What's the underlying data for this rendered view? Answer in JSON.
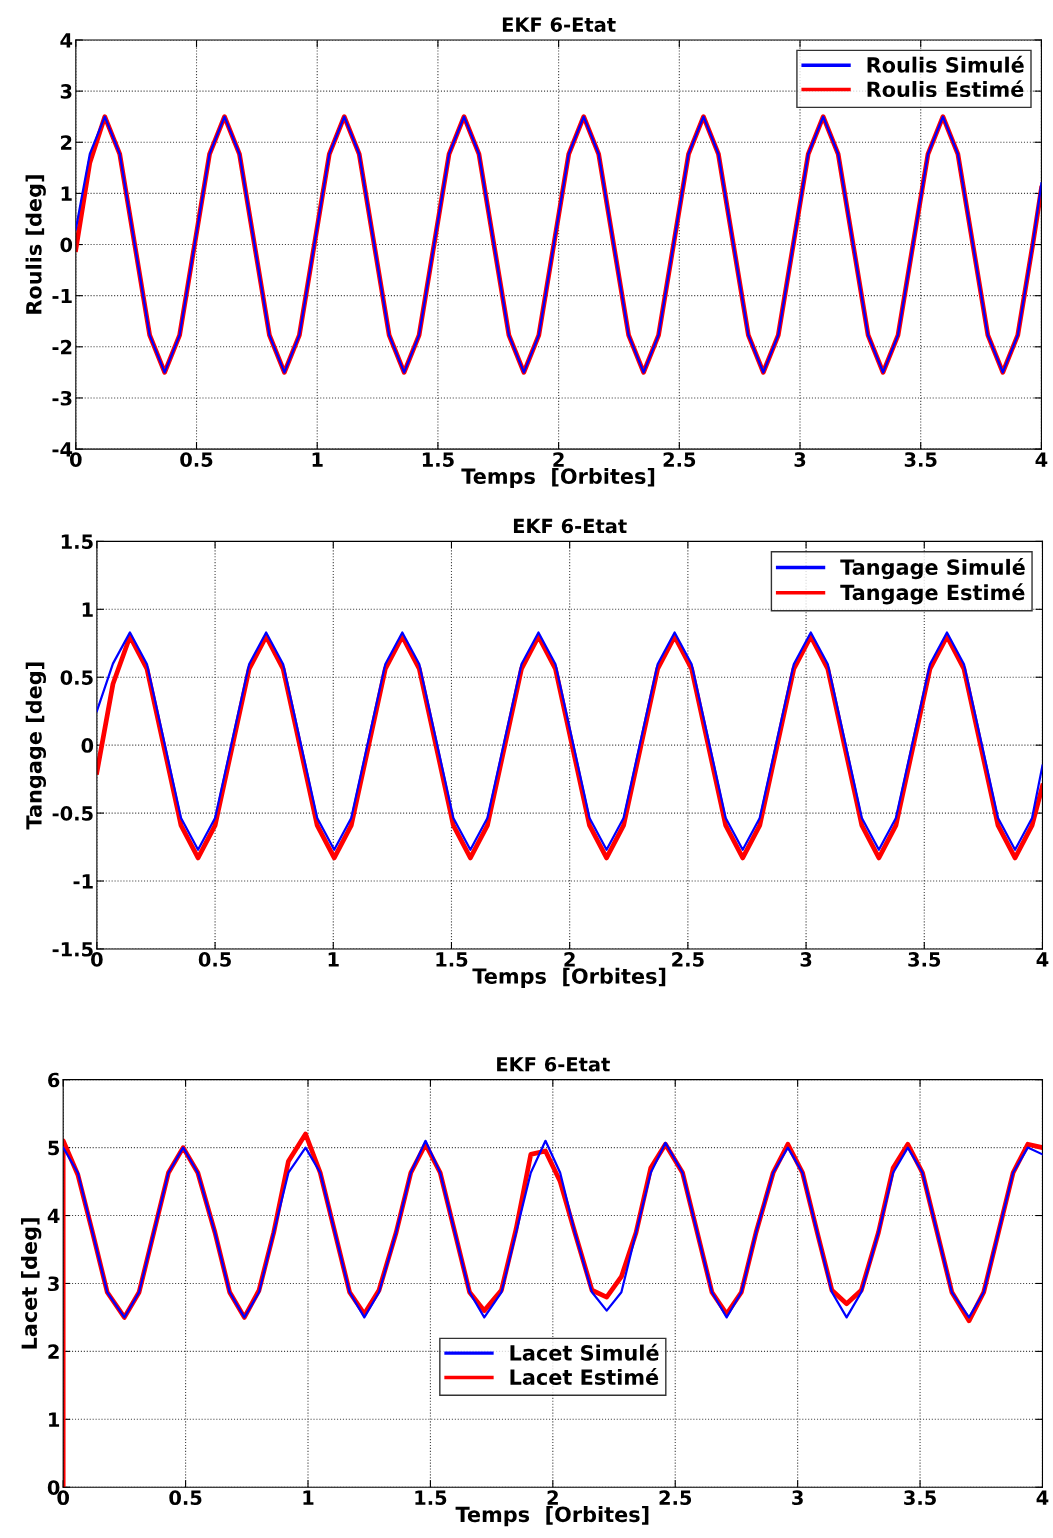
{
  "chart_data": [
    {
      "type": "line",
      "title": "EKF 6-Etat",
      "xlabel": "Temps  [Orbites]",
      "ylabel": "Roulis [deg]",
      "xlim": [
        0,
        4
      ],
      "ylim": [
        -4,
        4
      ],
      "xticks": [
        0,
        0.5,
        1,
        1.5,
        2,
        2.5,
        3,
        3.5,
        4
      ],
      "yticks": [
        -4,
        -3,
        -2,
        -1,
        0,
        1,
        2,
        3,
        4
      ],
      "grid": true,
      "legend": "top right",
      "line_style": "solid",
      "marker": "none",
      "x": [
        0,
        0.058,
        0.12,
        0.182,
        0.244,
        0.306,
        0.368,
        0.43,
        0.492,
        0.554,
        0.616,
        0.678,
        0.74,
        0.802,
        0.864,
        0.926,
        0.988,
        1.05,
        1.112,
        1.174,
        1.236,
        1.298,
        1.36,
        1.422,
        1.484,
        1.546,
        1.608,
        1.67,
        1.732,
        1.794,
        1.856,
        1.918,
        1.98,
        2.042,
        2.104,
        2.166,
        2.228,
        2.29,
        2.352,
        2.414,
        2.476,
        2.538,
        2.6,
        2.662,
        2.724,
        2.786,
        2.848,
        2.91,
        2.972,
        3.034,
        3.096,
        3.158,
        3.22,
        3.282,
        3.344,
        3.406,
        3.468,
        3.53,
        3.592,
        3.654,
        3.716,
        3.778,
        3.84,
        3.902,
        3.964,
        4
      ],
      "series": [
        {
          "name": "Roulis Simulé",
          "color": "#0000ff",
          "values": [
            0.3,
            1.77,
            2.5,
            1.77,
            0,
            -1.77,
            -2.5,
            -1.77,
            0,
            1.77,
            2.5,
            1.77,
            0,
            -1.77,
            -2.5,
            -1.77,
            0,
            1.77,
            2.5,
            1.77,
            0,
            -1.77,
            -2.5,
            -1.77,
            0,
            1.77,
            2.5,
            1.77,
            0,
            -1.77,
            -2.5,
            -1.77,
            0,
            1.77,
            2.5,
            1.77,
            0,
            -1.77,
            -2.5,
            -1.77,
            0,
            1.77,
            2.5,
            1.77,
            0,
            -1.77,
            -2.5,
            -1.77,
            0,
            1.77,
            2.5,
            1.77,
            0,
            -1.77,
            -2.5,
            -1.77,
            0,
            1.77,
            2.5,
            1.77,
            0,
            -1.77,
            -2.5,
            -1.77,
            0,
            1.2
          ]
        },
        {
          "name": "Roulis Estimé",
          "color": "#ff0000",
          "values": [
            -0.1,
            1.6,
            2.5,
            1.77,
            0,
            -1.77,
            -2.5,
            -1.77,
            0,
            1.77,
            2.5,
            1.77,
            0,
            -1.77,
            -2.5,
            -1.77,
            0,
            1.77,
            2.5,
            1.77,
            0,
            -1.77,
            -2.5,
            -1.77,
            0,
            1.77,
            2.5,
            1.77,
            0,
            -1.77,
            -2.5,
            -1.77,
            0,
            1.77,
            2.5,
            1.77,
            0,
            -1.77,
            -2.5,
            -1.77,
            0,
            1.77,
            2.5,
            1.77,
            0,
            -1.77,
            -2.5,
            -1.77,
            0,
            1.77,
            2.5,
            1.77,
            0,
            -1.77,
            -2.5,
            -1.77,
            0,
            1.77,
            2.5,
            1.77,
            0,
            -1.77,
            -2.5,
            -1.77,
            0,
            1.1
          ]
        }
      ]
    },
    {
      "type": "line",
      "title": "EKF 6-Etat",
      "xlabel": "Temps  [Orbites]",
      "ylabel": "Tangage [deg]",
      "xlim": [
        0,
        4
      ],
      "ylim": [
        -1.5,
        1.5
      ],
      "xticks": [
        0,
        0.5,
        1,
        1.5,
        2,
        2.5,
        3,
        3.5,
        4
      ],
      "yticks": [
        -1.5,
        -1,
        -0.5,
        0,
        0.5,
        1,
        1.5
      ],
      "grid": true,
      "legend": "top right",
      "line_style": "solid",
      "marker": "none",
      "x": [
        0,
        0.068,
        0.14,
        0.212,
        0.284,
        0.356,
        0.428,
        0.5,
        0.572,
        0.644,
        0.716,
        0.788,
        0.86,
        0.932,
        1.004,
        1.076,
        1.148,
        1.22,
        1.292,
        1.364,
        1.436,
        1.508,
        1.58,
        1.652,
        1.724,
        1.796,
        1.868,
        1.94,
        2.012,
        2.084,
        2.156,
        2.228,
        2.3,
        2.372,
        2.444,
        2.516,
        2.588,
        2.66,
        2.732,
        2.804,
        2.876,
        2.948,
        3.02,
        3.092,
        3.164,
        3.236,
        3.308,
        3.38,
        3.452,
        3.524,
        3.596,
        3.668,
        3.74,
        3.812,
        3.884,
        3.956,
        4
      ],
      "series": [
        {
          "name": "Tangage Simulé",
          "color": "#0000ff",
          "values": [
            0.25,
            0.6,
            0.83,
            0.596,
            0.03,
            -0.536,
            -0.77,
            -0.536,
            0.03,
            0.596,
            0.83,
            0.596,
            0.03,
            -0.536,
            -0.77,
            -0.536,
            0.03,
            0.596,
            0.83,
            0.596,
            0.03,
            -0.536,
            -0.77,
            -0.536,
            0.03,
            0.596,
            0.83,
            0.596,
            0.03,
            -0.536,
            -0.77,
            -0.536,
            0.03,
            0.596,
            0.83,
            0.596,
            0.03,
            -0.536,
            -0.77,
            -0.536,
            0.03,
            0.596,
            0.83,
            0.596,
            0.03,
            -0.536,
            -0.77,
            -0.536,
            0.03,
            0.596,
            0.83,
            0.596,
            0.03,
            -0.536,
            -0.77,
            -0.536,
            -0.15
          ]
        },
        {
          "name": "Tangage Estimé",
          "color": "#ff0000",
          "values": [
            -0.2,
            0.45,
            0.8,
            0.561,
            -0.015,
            -0.591,
            -0.83,
            -0.591,
            -0.015,
            0.561,
            0.8,
            0.561,
            -0.015,
            -0.591,
            -0.83,
            -0.591,
            -0.015,
            0.561,
            0.8,
            0.561,
            -0.015,
            -0.591,
            -0.83,
            -0.591,
            -0.015,
            0.561,
            0.8,
            0.561,
            -0.015,
            -0.591,
            -0.83,
            -0.591,
            -0.015,
            0.561,
            0.8,
            0.561,
            -0.015,
            -0.591,
            -0.83,
            -0.591,
            -0.015,
            0.561,
            0.8,
            0.561,
            -0.015,
            -0.591,
            -0.83,
            -0.591,
            -0.015,
            0.561,
            0.8,
            0.561,
            -0.015,
            -0.591,
            -0.83,
            -0.591,
            -0.3
          ]
        }
      ]
    },
    {
      "type": "line",
      "title": "EKF 6-Etat",
      "xlabel": "Temps  [Orbites]",
      "ylabel": "Lacet [deg]",
      "xlim": [
        0,
        4
      ],
      "ylim": [
        0,
        6
      ],
      "xticks": [
        0,
        0.5,
        1,
        1.5,
        2,
        2.5,
        3,
        3.5,
        4
      ],
      "yticks": [
        0,
        1,
        2,
        3,
        4,
        5,
        6
      ],
      "grid": true,
      "legend": "bottom",
      "line_style": "solid",
      "marker": "none",
      "series": [
        {
          "name": "Lacet Simulé",
          "color": "#0000ff",
          "x": [
            0,
            0.06,
            0.12,
            0.18,
            0.25,
            0.31,
            0.37,
            0.43,
            0.49,
            0.55,
            0.62,
            0.68,
            0.74,
            0.8,
            0.86,
            0.92,
            0.99,
            1.05,
            1.11,
            1.17,
            1.23,
            1.29,
            1.36,
            1.42,
            1.48,
            1.54,
            1.6,
            1.66,
            1.72,
            1.79,
            1.85,
            1.91,
            1.97,
            2.03,
            2.09,
            2.16,
            2.22,
            2.28,
            2.34,
            2.4,
            2.46,
            2.53,
            2.59,
            2.65,
            2.71,
            2.77,
            2.83,
            2.9,
            2.96,
            3.02,
            3.08,
            3.14,
            3.2,
            3.26,
            3.33,
            3.39,
            3.45,
            3.51,
            3.57,
            3.63,
            3.7,
            3.76,
            3.82,
            3.88,
            3.94,
            4
          ],
          "values": [
            5,
            4.63,
            3.75,
            2.87,
            2.5,
            2.87,
            3.75,
            4.63,
            5,
            4.63,
            3.75,
            2.87,
            2.5,
            2.87,
            3.75,
            4.63,
            5,
            4.63,
            3.75,
            2.87,
            2.5,
            2.87,
            3.75,
            4.63,
            5.1,
            4.63,
            3.75,
            2.87,
            2.5,
            2.87,
            3.75,
            4.63,
            5.1,
            4.63,
            3.75,
            2.87,
            2.6,
            2.87,
            3.75,
            4.63,
            5.07,
            4.63,
            3.75,
            2.87,
            2.5,
            2.87,
            3.75,
            4.63,
            5,
            4.63,
            3.75,
            2.87,
            2.5,
            2.87,
            3.75,
            4.63,
            5,
            4.63,
            3.75,
            2.87,
            2.5,
            2.87,
            3.75,
            4.63,
            5,
            4.9
          ]
        },
        {
          "name": "Lacet Estimé",
          "color": "#ff0000",
          "x": [
            0,
            0,
            0.06,
            0.12,
            0.18,
            0.25,
            0.31,
            0.37,
            0.43,
            0.49,
            0.55,
            0.62,
            0.68,
            0.74,
            0.8,
            0.86,
            0.92,
            0.99,
            1.05,
            1.11,
            1.17,
            1.23,
            1.29,
            1.36,
            1.42,
            1.48,
            1.54,
            1.6,
            1.66,
            1.72,
            1.79,
            1.85,
            1.91,
            1.97,
            2.03,
            2.09,
            2.16,
            2.22,
            2.28,
            2.34,
            2.4,
            2.46,
            2.53,
            2.59,
            2.65,
            2.71,
            2.77,
            2.83,
            2.9,
            2.96,
            3.02,
            3.08,
            3.14,
            3.2,
            3.26,
            3.33,
            3.39,
            3.45,
            3.51,
            3.57,
            3.63,
            3.7,
            3.76,
            3.82,
            3.88,
            3.94,
            4
          ],
          "values": [
            0,
            5.1,
            4.6,
            3.75,
            2.87,
            2.5,
            2.87,
            3.75,
            4.63,
            5,
            4.63,
            3.75,
            2.87,
            2.5,
            2.9,
            3.75,
            4.8,
            5.2,
            4.63,
            3.75,
            2.87,
            2.55,
            2.9,
            3.75,
            4.63,
            5.05,
            4.63,
            3.75,
            2.87,
            2.6,
            2.9,
            3.8,
            4.9,
            4.95,
            4.5,
            3.75,
            2.9,
            2.8,
            3.1,
            3.75,
            4.7,
            5.05,
            4.63,
            3.75,
            2.87,
            2.55,
            2.87,
            3.75,
            4.63,
            5.05,
            4.63,
            3.75,
            2.9,
            2.7,
            2.9,
            3.75,
            4.7,
            5.05,
            4.63,
            3.75,
            2.87,
            2.45,
            2.87,
            3.75,
            4.63,
            5.05,
            5
          ]
        }
      ]
    }
  ]
}
